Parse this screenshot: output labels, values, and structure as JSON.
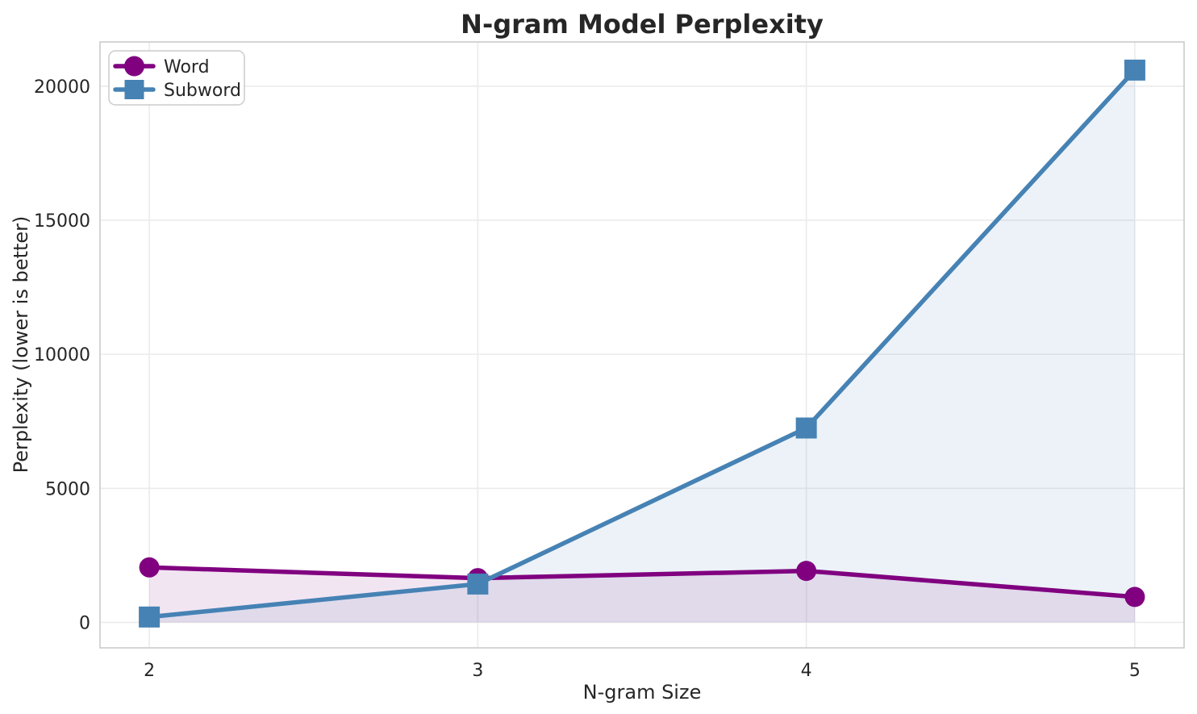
{
  "figure": {
    "background": "#ffffff",
    "text_color": "#262626",
    "grid_color": "#ebebeb",
    "spine_color": "#cbcbcb",
    "legend_border_color": "#cccccc",
    "legend_background": "#ffffff"
  },
  "chart_data": {
    "type": "line",
    "title": "N-gram Model Perplexity",
    "xlabel": "N-gram Size",
    "ylabel": "Perplexity (lower is better)",
    "x": [
      2,
      3,
      4,
      5
    ],
    "series": [
      {
        "name": "Word",
        "color": "#800080",
        "marker": "circle",
        "values": [
          2050,
          1650,
          1920,
          950
        ]
      },
      {
        "name": "Subword",
        "color": "#4682b4",
        "marker": "square",
        "values": [
          200,
          1430,
          7250,
          20600
        ]
      }
    ],
    "xticks": [
      2,
      3,
      4,
      5
    ],
    "xtick_labels": [
      "2",
      "3",
      "4",
      "5"
    ],
    "yticks": [
      0,
      5000,
      10000,
      15000,
      20000
    ],
    "ytick_labels": [
      "0",
      "5000",
      "10000",
      "15000",
      "20000"
    ],
    "xlim": [
      1.85,
      5.15
    ],
    "ylim": [
      -950,
      21650
    ],
    "grid": true,
    "area_fill": true,
    "fill_baseline": 0,
    "fill_alpha": 0.1,
    "legend_position": "upper left",
    "line_width": 5.5
  }
}
